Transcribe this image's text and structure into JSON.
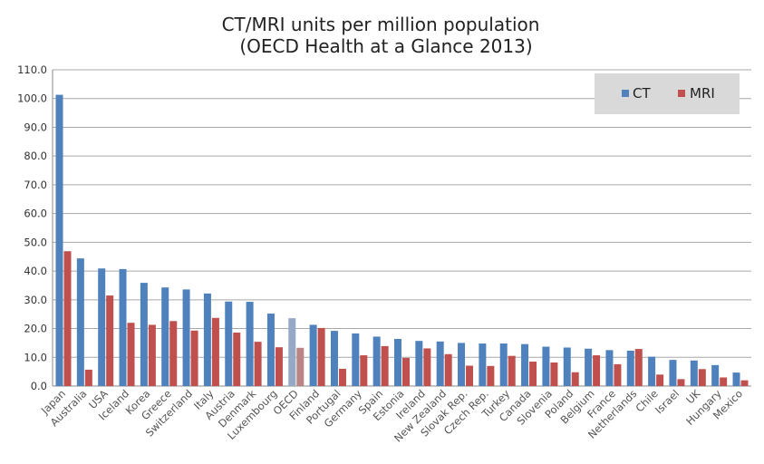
{
  "chart_data": {
    "type": "bar",
    "title": [
      "CT/MRI units per million population",
      "(OECD Health at a Glance 2013)"
    ],
    "xlabel": "",
    "ylabel": "",
    "ylim": [
      0,
      110
    ],
    "yticks": [
      "0.0",
      "10.0",
      "20.0",
      "30.0",
      "40.0",
      "50.0",
      "60.0",
      "70.0",
      "80.0",
      "90.0",
      "100.0",
      "110.0"
    ],
    "grid": true,
    "legend_position": "top-right",
    "highlight_category": "OECD",
    "categories": [
      "Japan",
      "Australia",
      "USA",
      "Iceland",
      "Korea",
      "Greece",
      "Switzerland",
      "Italy",
      "Austria",
      "Denmark",
      "Luxembourg",
      "OECD",
      "Finland",
      "Portugal",
      "Germany",
      "Spain",
      "Estonia",
      "Ireland",
      "New Zealand",
      "Slovak Rep.",
      "Czech Rep.",
      "Turkey",
      "Canada",
      "Slovenia",
      "Poland",
      "Belgium",
      "France",
      "Netherlands",
      "Chile",
      "Israel",
      "UK",
      "Hungary",
      "Mexico"
    ],
    "series": [
      {
        "name": "CT",
        "color": "#4f81bd",
        "highlight_color": "#95a8c6",
        "values": [
          101.3,
          44.4,
          40.9,
          40.7,
          35.9,
          34.3,
          33.6,
          32.2,
          29.4,
          29.3,
          25.2,
          23.6,
          21.3,
          19.2,
          18.3,
          17.2,
          16.4,
          15.7,
          15.5,
          15.0,
          14.8,
          14.8,
          14.6,
          13.7,
          13.4,
          13.0,
          12.5,
          12.3,
          10.2,
          9.1,
          8.9,
          7.3,
          4.7
        ]
      },
      {
        "name": "MRI",
        "color": "#c0504d",
        "highlight_color": "#b88484",
        "values": [
          46.9,
          5.7,
          31.5,
          22.0,
          21.3,
          22.6,
          19.3,
          23.7,
          18.6,
          15.4,
          13.5,
          13.3,
          20.2,
          6.0,
          10.7,
          13.9,
          9.8,
          13.1,
          11.1,
          7.1,
          7.0,
          10.5,
          8.5,
          8.2,
          4.8,
          10.7,
          7.6,
          12.9,
          4.0,
          2.4,
          5.9,
          3.0,
          2.0
        ]
      }
    ]
  },
  "colors": {
    "legend_bg": "#d9d9d9",
    "highlight_label": "#e7819b",
    "grid": "#a8a8a8"
  }
}
